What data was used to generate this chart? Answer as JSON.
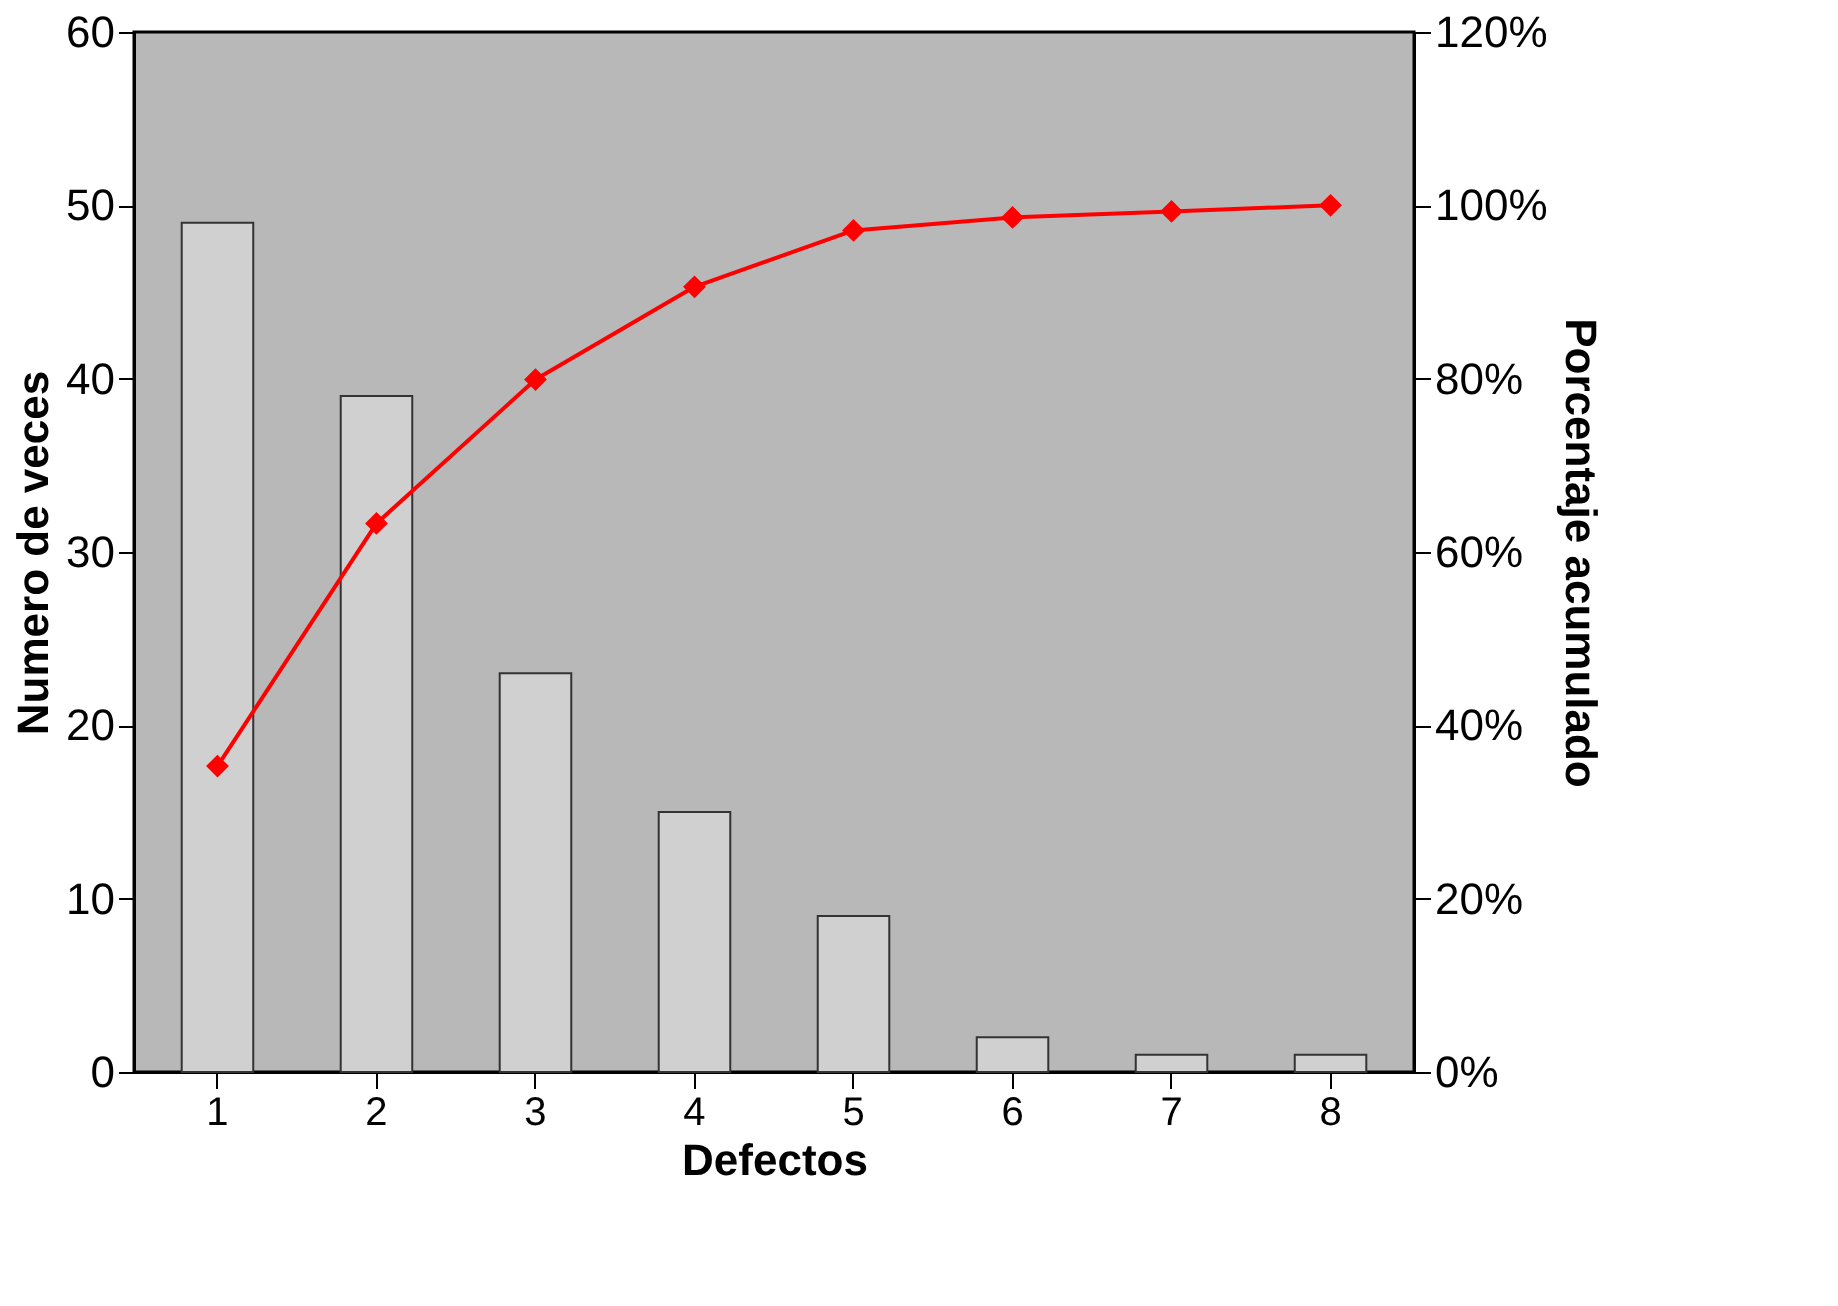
{
  "chart_data": {
    "type": "bar",
    "xlabel": "Defectos",
    "ylabel": "Numero de veces",
    "y2label": "Porcentaje acumulado",
    "categories": [
      "1",
      "2",
      "3",
      "4",
      "5",
      "6",
      "7",
      "8"
    ],
    "series": [
      {
        "color": "#d0d0d0",
        "values": [
          49,
          39,
          23,
          15,
          9,
          2,
          1,
          1
        ]
      },
      {
        "type": "line",
        "axis": "y2",
        "color": "#ff0000",
        "marker": "diamond",
        "values": [
          35.3,
          63.3,
          79.9,
          90.6,
          97.1,
          98.6,
          99.3,
          100
        ]
      }
    ],
    "ylim": [
      0,
      60
    ],
    "yticks": [
      0,
      10,
      20,
      30,
      40,
      50,
      60
    ],
    "y2lim": [
      0,
      120
    ],
    "y2ticks": [
      {
        "value": 0,
        "label": "0%"
      },
      {
        "value": 20,
        "label": "20%"
      },
      {
        "value": 40,
        "label": "40%"
      },
      {
        "value": 60,
        "label": "60%"
      },
      {
        "value": 80,
        "label": "80%"
      },
      {
        "value": 100,
        "label": "100%"
      },
      {
        "value": 120,
        "label": "120%"
      }
    ],
    "grid": false
  }
}
